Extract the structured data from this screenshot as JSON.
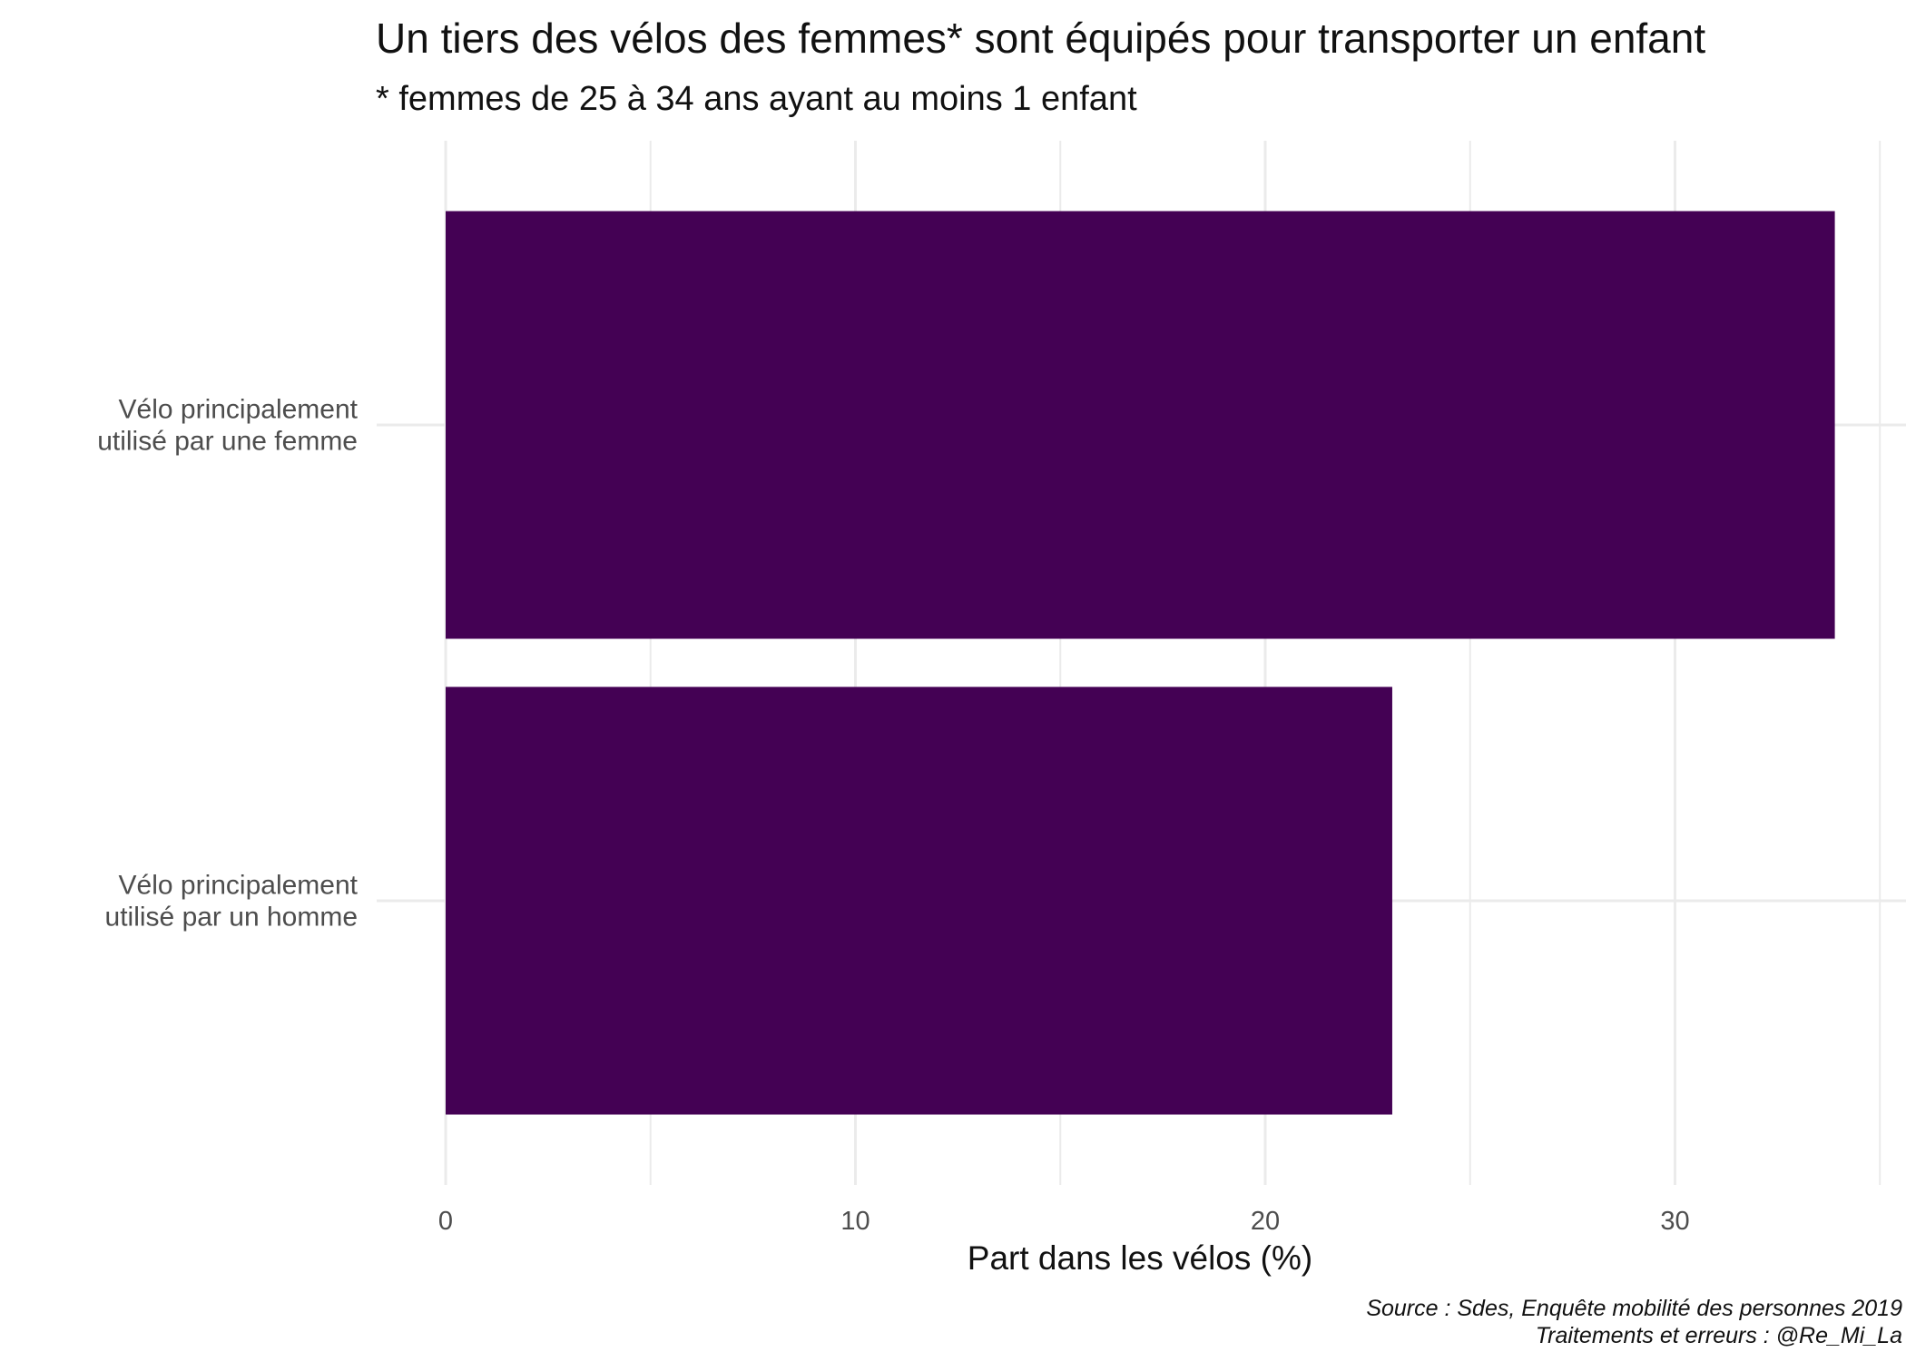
{
  "chart_data": {
    "type": "bar",
    "orientation": "horizontal",
    "title": "Un tiers des vélos des femmes* sont équipés pour transporter un enfant",
    "subtitle": "* femmes de 25 à 34 ans ayant au moins 1 enfant",
    "categories": [
      [
        "Vélo principalement",
        "utilisé par une femme"
      ],
      [
        "Vélo principalement",
        "utilisé par un homme"
      ]
    ],
    "values": [
      33.9,
      23.1
    ],
    "xlabel": "Part dans les vélos (%)",
    "ylabel": "",
    "xlim": [
      0,
      35
    ],
    "xticks": [
      0,
      10,
      20,
      30
    ],
    "minor_gridlines": [
      5,
      15,
      25,
      35
    ],
    "grid": true,
    "legend": "none",
    "bar_color": "#440154",
    "grid_color": "#ebebeb",
    "caption": [
      "Source : Sdes, Enquête mobilité des personnes 2019",
      "Traitements et erreurs : @Re_Mi_La"
    ]
  }
}
